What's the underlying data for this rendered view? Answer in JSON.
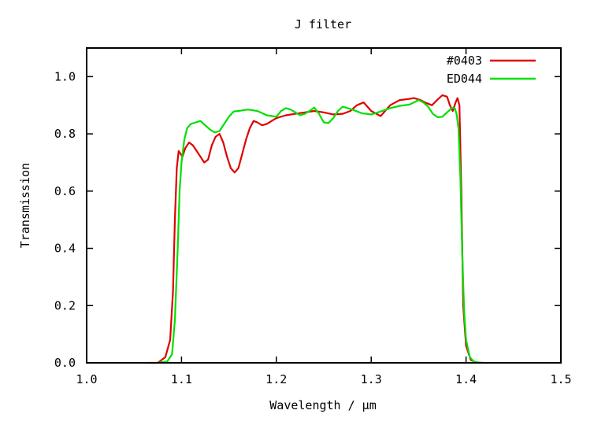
{
  "chart_data": {
    "type": "line",
    "title": "J filter",
    "xlabel": "Wavelength / μm",
    "ylabel": "Transmission",
    "xlim": [
      1.0,
      1.5
    ],
    "ylim": [
      0.0,
      1.1
    ],
    "xticks": [
      "1.0",
      "1.1",
      "1.2",
      "1.3",
      "1.4",
      "1.5"
    ],
    "yticks": [
      "0.0",
      "0.2",
      "0.4",
      "0.6",
      "0.8",
      "1.0"
    ],
    "grid": false,
    "legend": "top-right",
    "series": [
      {
        "name": "#0403",
        "color": "#e00000",
        "x": [
          1.065,
          1.075,
          1.083,
          1.088,
          1.091,
          1.093,
          1.095,
          1.097,
          1.099,
          1.101,
          1.104,
          1.108,
          1.112,
          1.116,
          1.12,
          1.124,
          1.128,
          1.132,
          1.136,
          1.14,
          1.144,
          1.148,
          1.152,
          1.156,
          1.16,
          1.164,
          1.168,
          1.172,
          1.176,
          1.18,
          1.185,
          1.19,
          1.195,
          1.2,
          1.21,
          1.22,
          1.23,
          1.24,
          1.25,
          1.26,
          1.27,
          1.278,
          1.285,
          1.292,
          1.3,
          1.31,
          1.32,
          1.33,
          1.34,
          1.345,
          1.352,
          1.358,
          1.364,
          1.37,
          1.375,
          1.38,
          1.383,
          1.386,
          1.389,
          1.391,
          1.393,
          1.395,
          1.397,
          1.4,
          1.405,
          1.41,
          1.415
        ],
        "y": [
          0.0,
          0.0,
          0.02,
          0.08,
          0.25,
          0.5,
          0.68,
          0.74,
          0.73,
          0.72,
          0.75,
          0.77,
          0.76,
          0.74,
          0.72,
          0.7,
          0.71,
          0.76,
          0.79,
          0.8,
          0.77,
          0.72,
          0.68,
          0.665,
          0.68,
          0.73,
          0.78,
          0.82,
          0.845,
          0.84,
          0.83,
          0.835,
          0.845,
          0.855,
          0.865,
          0.87,
          0.875,
          0.88,
          0.875,
          0.868,
          0.87,
          0.88,
          0.9,
          0.91,
          0.88,
          0.862,
          0.9,
          0.918,
          0.922,
          0.925,
          0.918,
          0.908,
          0.9,
          0.92,
          0.935,
          0.93,
          0.9,
          0.88,
          0.91,
          0.925,
          0.9,
          0.6,
          0.2,
          0.06,
          0.01,
          0.002,
          0.0
        ]
      },
      {
        "name": "ED044",
        "color": "#00e000",
        "x": [
          1.075,
          1.085,
          1.09,
          1.093,
          1.096,
          1.098,
          1.1,
          1.103,
          1.106,
          1.11,
          1.115,
          1.12,
          1.125,
          1.13,
          1.135,
          1.14,
          1.145,
          1.15,
          1.155,
          1.16,
          1.17,
          1.18,
          1.19,
          1.2,
          1.205,
          1.21,
          1.215,
          1.22,
          1.225,
          1.23,
          1.235,
          1.24,
          1.245,
          1.25,
          1.255,
          1.26,
          1.265,
          1.27,
          1.28,
          1.29,
          1.3,
          1.31,
          1.32,
          1.33,
          1.34,
          1.345,
          1.35,
          1.355,
          1.36,
          1.365,
          1.37,
          1.375,
          1.38,
          1.385,
          1.388,
          1.39,
          1.392,
          1.394,
          1.396,
          1.398,
          1.4,
          1.404,
          1.408,
          1.412,
          1.418
        ],
        "y": [
          0.0,
          0.005,
          0.03,
          0.15,
          0.4,
          0.6,
          0.7,
          0.78,
          0.82,
          0.835,
          0.84,
          0.845,
          0.83,
          0.815,
          0.805,
          0.81,
          0.835,
          0.86,
          0.878,
          0.88,
          0.885,
          0.88,
          0.865,
          0.86,
          0.88,
          0.89,
          0.885,
          0.875,
          0.865,
          0.87,
          0.88,
          0.892,
          0.87,
          0.84,
          0.838,
          0.855,
          0.88,
          0.895,
          0.885,
          0.872,
          0.868,
          0.878,
          0.89,
          0.898,
          0.902,
          0.91,
          0.918,
          0.91,
          0.895,
          0.87,
          0.858,
          0.86,
          0.875,
          0.89,
          0.89,
          0.87,
          0.82,
          0.65,
          0.38,
          0.18,
          0.08,
          0.02,
          0.005,
          0.002,
          0.0
        ]
      }
    ]
  }
}
